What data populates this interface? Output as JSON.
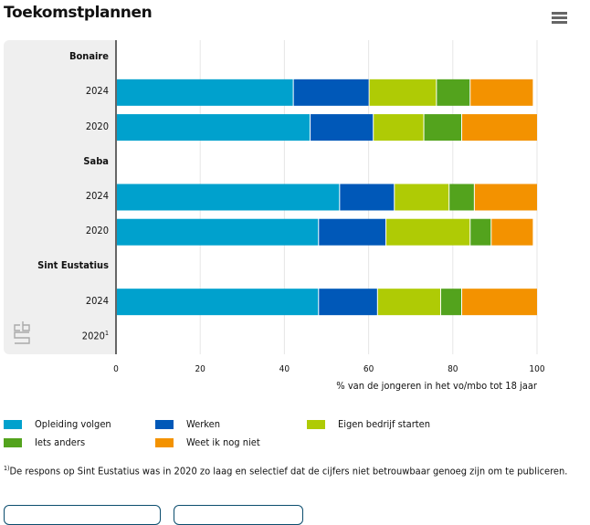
{
  "page": {
    "title": "Toekomstplannen",
    "menu_icon": "hamburger-menu-icon",
    "logo": "cbs-logo-icon"
  },
  "chart_data": {
    "type": "bar",
    "orientation": "horizontal",
    "stacked": true,
    "title": "Toekomstplannen",
    "xlabel": "% van de jongeren in het vo/mbo tot 18 jaar",
    "ylabel": "",
    "xlim": [
      0,
      100
    ],
    "x_ticks": [
      "0",
      "20",
      "40",
      "60",
      "80",
      "100"
    ],
    "grid": true,
    "legend_position": "bottom",
    "rows": [
      {
        "label": "Bonaire",
        "group_header": true
      },
      {
        "label": "2024",
        "group": "Bonaire"
      },
      {
        "label": "2020",
        "group": "Bonaire"
      },
      {
        "label": "Saba",
        "group_header": true
      },
      {
        "label": "2024",
        "group": "Saba"
      },
      {
        "label": "2020",
        "group": "Saba"
      },
      {
        "label": "Sint Eustatius",
        "group_header": true
      },
      {
        "label": "2024",
        "group": "Sint Eustatius"
      },
      {
        "label": "2020",
        "group": "Sint Eustatius",
        "footnote_mark": "1"
      }
    ],
    "categories": [
      "Bonaire 2024",
      "Bonaire 2020",
      "Saba 2024",
      "Saba 2020",
      "Sint Eustatius 2024",
      "Sint Eustatius 2020"
    ],
    "series": [
      {
        "name": "Opleiding volgen",
        "color": "#00a1cd",
        "values": [
          42,
          46,
          53,
          48,
          48,
          null
        ]
      },
      {
        "name": "Werken",
        "color": "#0058b8",
        "values": [
          18,
          15,
          13,
          16,
          14,
          null
        ]
      },
      {
        "name": "Eigen bedrijf starten",
        "color": "#afcb05",
        "values": [
          16,
          12,
          13,
          20,
          15,
          null
        ]
      },
      {
        "name": "Iets anders",
        "color": "#53a31d",
        "values": [
          8,
          9,
          6,
          5,
          5,
          null
        ]
      },
      {
        "name": "Weet ik nog niet",
        "color": "#f39200",
        "values": [
          15,
          18,
          15,
          10,
          18,
          null
        ]
      }
    ]
  },
  "footnote": {
    "mark": "1)",
    "text": "De respons op Sint Eustatius was in 2020 zo laag en selectief dat de cijfers niet betrouwbaar genoeg zijn om te publiceren."
  }
}
